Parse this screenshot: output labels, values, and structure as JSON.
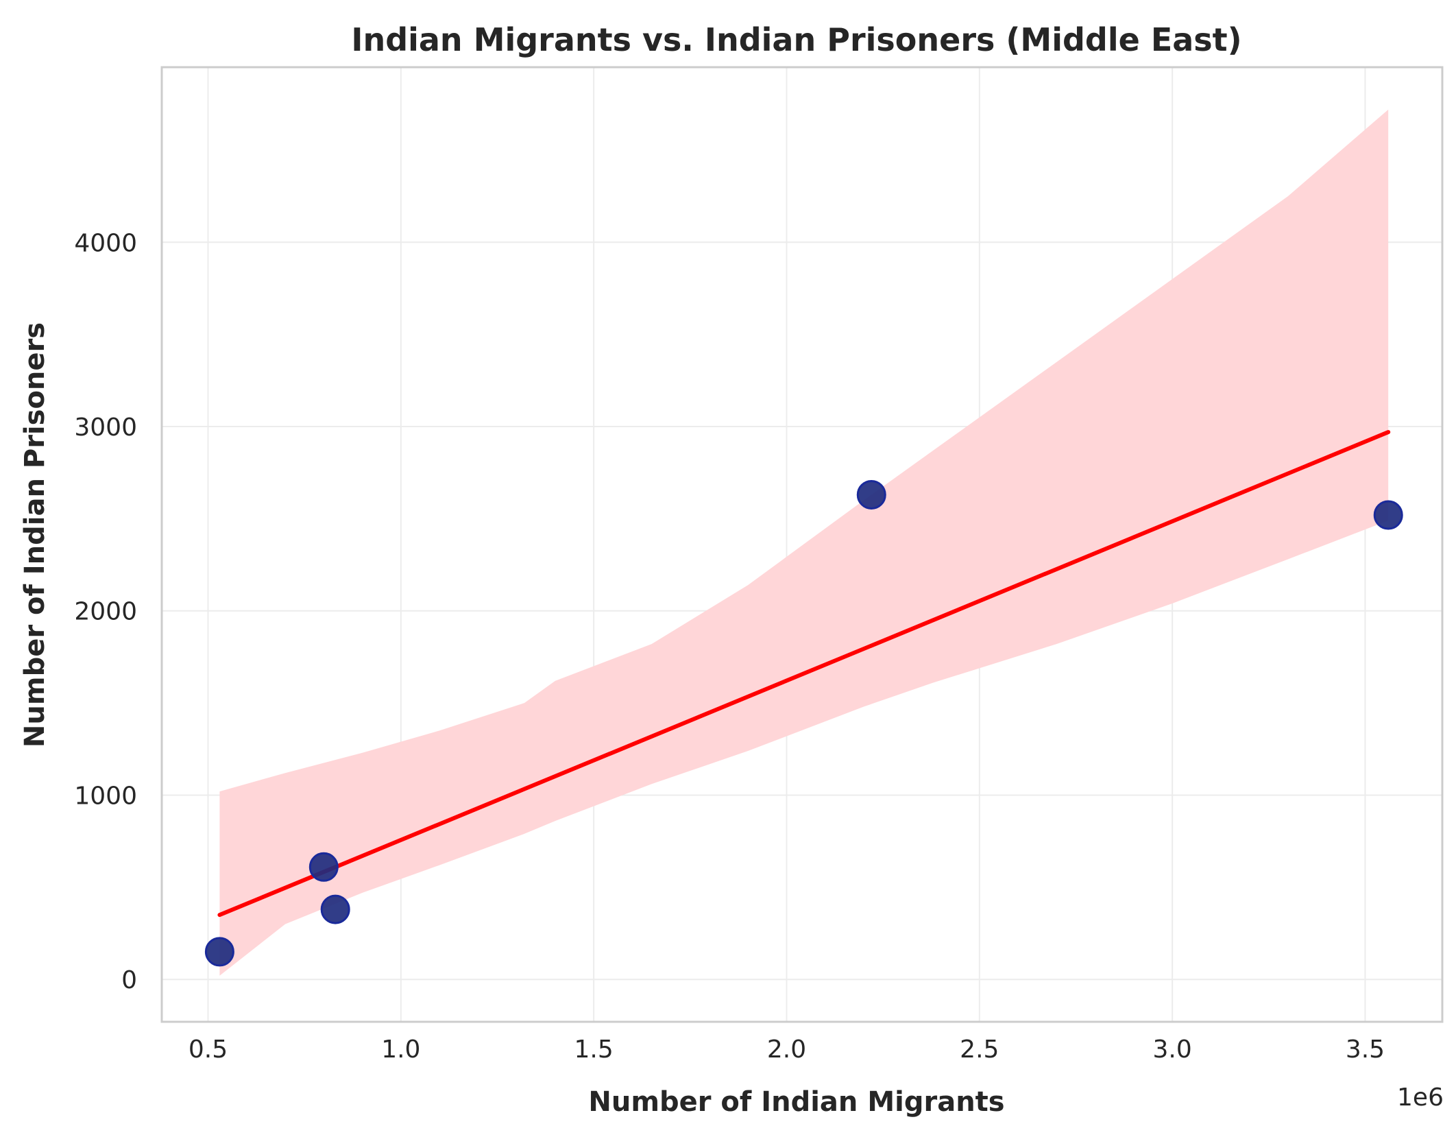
{
  "chart_data": {
    "type": "scatter",
    "title": "Indian Migrants vs. Indian Prisoners (Middle East)",
    "xlabel": "Number of Indian Migrants",
    "ylabel": "Number of Indian Prisoners",
    "x_offset_label": "1e6",
    "xlim": [
      380000,
      3700000
    ],
    "ylim": [
      -230,
      4950
    ],
    "x_ticks": [
      0.5,
      1.0,
      1.5,
      2.0,
      2.5,
      3.0,
      3.5
    ],
    "x_tick_labels": [
      "0.5",
      "1.0",
      "1.5",
      "2.0",
      "2.5",
      "3.0",
      "3.5"
    ],
    "y_ticks": [
      0,
      1000,
      2000,
      3000,
      4000
    ],
    "y_tick_labels": [
      "0",
      "1000",
      "2000",
      "3000",
      "4000"
    ],
    "grid": true,
    "points": [
      {
        "x": 530000,
        "y": 150
      },
      {
        "x": 800000,
        "y": 610
      },
      {
        "x": 830000,
        "y": 380
      },
      {
        "x": 2220000,
        "y": 2630
      },
      {
        "x": 3560000,
        "y": 2520
      }
    ],
    "regression_line": {
      "x": [
        530000,
        3560000
      ],
      "y": [
        350,
        2970
      ]
    },
    "confidence_band": {
      "x": [
        530000,
        700000,
        900000,
        1100000,
        1320000,
        1400000,
        1650000,
        1900000,
        2200000,
        2380000,
        2700000,
        3000000,
        3300000,
        3560000
      ],
      "upper": [
        1020,
        1120,
        1230,
        1350,
        1500,
        1620,
        1820,
        2140,
        2600,
        2870,
        3350,
        3800,
        4250,
        4720
      ],
      "lower": [
        20,
        300,
        470,
        620,
        790,
        860,
        1060,
        1240,
        1480,
        1610,
        1820,
        2040,
        2280,
        2490
      ]
    },
    "colors": {
      "point_fill": "#1f2d7e",
      "point_edge": "#1a2a9a",
      "line": "#ff0000",
      "band": "#ffd6d8",
      "grid": "#ececec",
      "spine": "#cccccc"
    }
  }
}
